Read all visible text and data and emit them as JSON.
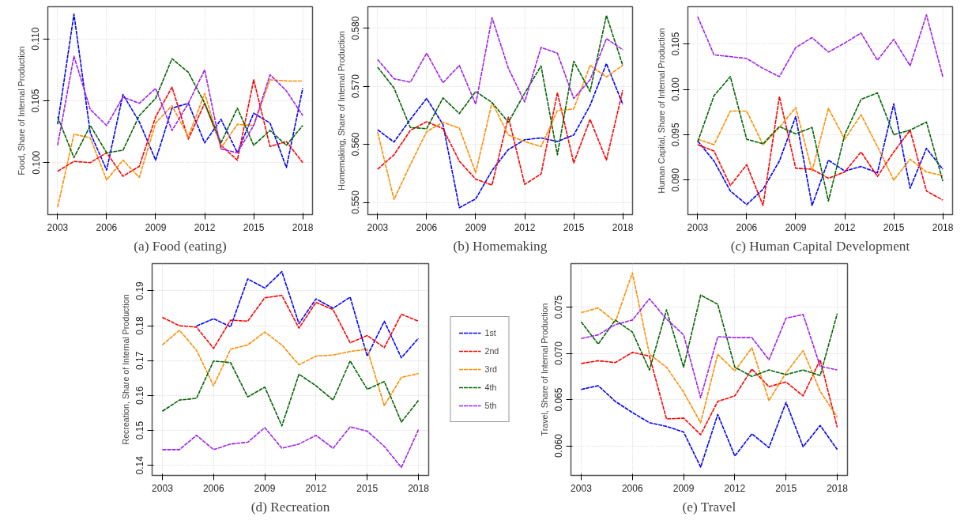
{
  "chart_data": [
    {
      "type": "line",
      "title": "(a) Food (eating)",
      "ylabel": "Food, Share of Internal Production",
      "x": [
        2003,
        2004,
        2005,
        2006,
        2007,
        2008,
        2009,
        2010,
        2011,
        2012,
        2013,
        2014,
        2015,
        2016,
        2017,
        2018
      ],
      "xlim": [
        2002.4,
        2018.6
      ],
      "xticks": [
        2003,
        2006,
        2009,
        2012,
        2015,
        2018
      ],
      "ylim": [
        0.0958,
        0.1126
      ],
      "yticks": [
        {
          "value": 0.1,
          "label": "0.100"
        },
        {
          "value": 0.105,
          "label": "0.105"
        },
        {
          "value": 0.11,
          "label": "0.110"
        }
      ],
      "grid": true,
      "line_style": "dashed",
      "series": [
        {
          "color": "#0000ff",
          "values": [
            0.1031,
            0.112,
            0.1024,
            0.0994,
            0.1055,
            0.1033,
            0.1002,
            0.1044,
            0.1048,
            0.1016,
            0.1035,
            0.1008,
            0.104,
            0.1032,
            0.0996,
            0.106
          ]
        },
        {
          "color": "#ff0000",
          "values": [
            0.0993,
            0.1001,
            0.1,
            0.1008,
            0.0989,
            0.0997,
            0.1037,
            0.1061,
            0.1019,
            0.1048,
            0.1014,
            0.1002,
            0.1067,
            0.1013,
            0.1017,
            0.1
          ]
        },
        {
          "color": "#ff8c00",
          "values": [
            0.0964,
            0.1023,
            0.102,
            0.0986,
            0.1002,
            0.0988,
            0.1032,
            0.1046,
            0.1021,
            0.1056,
            0.1012,
            0.1031,
            0.103,
            0.1067,
            0.1066,
            0.1066
          ]
        },
        {
          "color": "#006400",
          "values": [
            0.1037,
            0.1004,
            0.103,
            0.1008,
            0.101,
            0.1038,
            0.1052,
            0.1084,
            0.1073,
            0.1048,
            0.1016,
            0.1044,
            0.1014,
            0.1026,
            0.1014,
            0.103
          ]
        },
        {
          "color": "#a020f0",
          "values": [
            0.1014,
            0.1086,
            0.1043,
            0.103,
            0.1053,
            0.1048,
            0.106,
            0.1026,
            0.1048,
            0.1075,
            0.1011,
            0.1008,
            0.103,
            0.1071,
            0.1058,
            0.1038
          ]
        }
      ]
    },
    {
      "type": "line",
      "title": "(b) Homemaking",
      "ylabel": "Homemaking, Share of Internal Production",
      "x": [
        2003,
        2004,
        2005,
        2006,
        2007,
        2008,
        2009,
        2010,
        2011,
        2012,
        2013,
        2014,
        2015,
        2016,
        2017,
        2018
      ],
      "xlim": [
        2002.4,
        2018.6
      ],
      "xticks": [
        2003,
        2006,
        2009,
        2012,
        2015,
        2018
      ],
      "ylim": [
        0.5479,
        0.5837
      ],
      "yticks": [
        {
          "value": 0.55,
          "label": "0.550"
        },
        {
          "value": 0.56,
          "label": "0.560"
        },
        {
          "value": 0.57,
          "label": "0.570"
        },
        {
          "value": 0.58,
          "label": "0.580"
        }
      ],
      "grid": true,
      "line_style": "dashed",
      "series": [
        {
          "color": "#0000ff",
          "values": [
            0.5625,
            0.5604,
            0.5643,
            0.5679,
            0.5634,
            0.5491,
            0.5506,
            0.5555,
            0.5591,
            0.5608,
            0.5611,
            0.5605,
            0.5616,
            0.5667,
            0.5739,
            0.5669
          ]
        },
        {
          "color": "#ff0000",
          "values": [
            0.5557,
            0.5582,
            0.5624,
            0.5639,
            0.5627,
            0.5571,
            0.554,
            0.553,
            0.5647,
            0.5531,
            0.5549,
            0.5689,
            0.5568,
            0.5643,
            0.5573,
            0.5693
          ]
        },
        {
          "color": "#ff8c00",
          "values": [
            0.5621,
            0.5505,
            0.5565,
            0.5622,
            0.5638,
            0.5628,
            0.5551,
            0.5672,
            0.5616,
            0.5605,
            0.5596,
            0.5658,
            0.5661,
            0.5736,
            0.5716,
            0.5736
          ]
        },
        {
          "color": "#006400",
          "values": [
            0.5733,
            0.5697,
            0.5629,
            0.5627,
            0.568,
            0.5653,
            0.5691,
            0.5672,
            0.5638,
            0.5688,
            0.5735,
            0.5582,
            0.5743,
            0.5691,
            0.5822,
            0.5736
          ]
        },
        {
          "color": "#a020f0",
          "values": [
            0.5746,
            0.5713,
            0.5707,
            0.5757,
            0.5706,
            0.5736,
            0.5669,
            0.5818,
            0.5731,
            0.5673,
            0.5767,
            0.5757,
            0.5679,
            0.5711,
            0.5782,
            0.5763
          ]
        }
      ]
    },
    {
      "type": "line",
      "title": "(c) Human Capital Development",
      "ylabel": "Human Capital, Share of Internal Production",
      "x": [
        2003,
        2004,
        2005,
        2006,
        2007,
        2008,
        2009,
        2010,
        2011,
        2012,
        2013,
        2014,
        2015,
        2016,
        2017,
        2018
      ],
      "xlim": [
        2002.4,
        2018.6
      ],
      "xticks": [
        2003,
        2006,
        2009,
        2012,
        2015,
        2018
      ],
      "ylim": [
        0.0862,
        0.1091
      ],
      "yticks": [
        {
          "value": 0.09,
          "label": "0.090"
        },
        {
          "value": 0.095,
          "label": "0.095"
        },
        {
          "value": 0.1,
          "label": "0.100"
        },
        {
          "value": 0.105,
          "label": "0.105"
        }
      ],
      "grid": true,
      "line_style": "dashed",
      "series": [
        {
          "color": "#0000ff",
          "values": [
            0.0943,
            0.0921,
            0.0888,
            0.0873,
            0.089,
            0.0921,
            0.097,
            0.0872,
            0.0922,
            0.091,
            0.0915,
            0.0908,
            0.0984,
            0.0891,
            0.0935,
            0.0912
          ]
        },
        {
          "color": "#ff0000",
          "values": [
            0.0939,
            0.0932,
            0.0894,
            0.0917,
            0.0872,
            0.0992,
            0.0913,
            0.0912,
            0.0902,
            0.0909,
            0.0931,
            0.0904,
            0.0931,
            0.0955,
            0.0888,
            0.0878
          ]
        },
        {
          "color": "#ff8c00",
          "values": [
            0.0945,
            0.0939,
            0.0976,
            0.0976,
            0.0939,
            0.0958,
            0.098,
            0.091,
            0.0979,
            0.0945,
            0.0972,
            0.0937,
            0.09,
            0.0923,
            0.0909,
            0.0905
          ]
        },
        {
          "color": "#006400",
          "values": [
            0.0942,
            0.0993,
            0.1014,
            0.0945,
            0.094,
            0.0959,
            0.0951,
            0.0958,
            0.0877,
            0.095,
            0.0989,
            0.0996,
            0.095,
            0.0955,
            0.0964,
            0.0899
          ]
        },
        {
          "color": "#a020f0",
          "values": [
            0.108,
            0.1038,
            0.1036,
            0.1034,
            0.1023,
            0.1014,
            0.1046,
            0.1057,
            0.1041,
            0.1051,
            0.1062,
            0.1032,
            0.1055,
            0.1026,
            0.1082,
            0.1014
          ]
        }
      ]
    },
    {
      "type": "line",
      "title": "(d) Recreation",
      "ylabel": "Recreation, Share of Internal Production",
      "x": [
        2003,
        2004,
        2005,
        2006,
        2007,
        2008,
        2009,
        2010,
        2011,
        2012,
        2013,
        2014,
        2015,
        2016,
        2017,
        2018
      ],
      "xlim": [
        2002.4,
        2018.6
      ],
      "xticks": [
        2003,
        2006,
        2009,
        2012,
        2015,
        2018
      ],
      "ylim": [
        0.1371,
        0.1978
      ],
      "yticks": [
        0.14,
        0.15,
        0.16,
        0.17,
        0.18,
        0.19
      ],
      "grid": true,
      "line_style": "dashed",
      "legend": "right",
      "series": [
        {
          "name": "1st",
          "color": "#0000ff",
          "values": [
            null,
            null,
            0.1799,
            0.182,
            0.1797,
            0.1934,
            0.1908,
            0.1955,
            0.1806,
            0.1877,
            0.185,
            0.1882,
            0.1713,
            0.1813,
            0.1708,
            0.1764
          ]
        },
        {
          "name": "2nd",
          "color": "#ff0000",
          "values": [
            0.1824,
            0.18,
            0.1796,
            0.1735,
            0.1816,
            0.1813,
            0.188,
            0.1887,
            0.1793,
            0.1867,
            0.1846,
            0.1751,
            0.1772,
            0.1737,
            0.1833,
            0.1813
          ]
        },
        {
          "name": "3rd",
          "color": "#ff8c00",
          "values": [
            0.1745,
            0.1787,
            0.173,
            0.1628,
            0.1733,
            0.1745,
            0.1782,
            0.1745,
            0.1688,
            0.1713,
            0.1716,
            0.1726,
            0.1733,
            0.1571,
            0.1652,
            0.1663
          ]
        },
        {
          "name": "4th",
          "color": "#006400",
          "values": [
            0.1555,
            0.1587,
            0.1592,
            0.1699,
            0.1694,
            0.1596,
            0.1624,
            0.1513,
            0.1661,
            0.1628,
            0.1587,
            0.1699,
            0.1618,
            0.164,
            0.1524,
            0.1586
          ]
        },
        {
          "name": "5th",
          "color": "#a020f0",
          "values": [
            0.1445,
            0.1445,
            0.1486,
            0.1445,
            0.1461,
            0.1466,
            0.1508,
            0.1449,
            0.1461,
            0.1486,
            0.1449,
            0.151,
            0.1498,
            0.1454,
            0.1394,
            0.1502
          ]
        }
      ]
    },
    {
      "type": "line",
      "title": "(e) Travel",
      "ylabel": "Travel, Share of Internal Production",
      "x": [
        2003,
        2004,
        2005,
        2006,
        2007,
        2008,
        2009,
        2010,
        2011,
        2012,
        2013,
        2014,
        2015,
        2016,
        2017,
        2018
      ],
      "xlim": [
        2002.4,
        2018.6
      ],
      "xticks": [
        2003,
        2006,
        2009,
        2012,
        2015,
        2018
      ],
      "ylim": [
        0.0568,
        0.0797
      ],
      "yticks": [
        {
          "value": 0.06,
          "label": "0.060"
        },
        {
          "value": 0.065,
          "label": "0.065"
        },
        {
          "value": 0.07,
          "label": "0.070"
        },
        {
          "value": 0.075,
          "label": "0.075"
        }
      ],
      "grid": true,
      "line_style": "dashed",
      "series": [
        {
          "color": "#0000ff",
          "values": [
            0.0661,
            0.0665,
            0.0648,
            0.0636,
            0.0625,
            0.0621,
            0.0615,
            0.0577,
            0.0634,
            0.0589,
            0.0613,
            0.0598,
            0.0647,
            0.0599,
            0.0622,
            0.0596
          ]
        },
        {
          "color": "#ff0000",
          "values": [
            0.0689,
            0.0692,
            0.069,
            0.0701,
            0.0697,
            0.0629,
            0.063,
            0.0612,
            0.0648,
            0.0654,
            0.0683,
            0.0664,
            0.0669,
            0.0654,
            0.0693,
            0.062
          ]
        },
        {
          "color": "#ff8c00",
          "values": [
            0.0744,
            0.0749,
            0.0734,
            0.0787,
            0.0699,
            0.0685,
            0.0658,
            0.0625,
            0.0699,
            0.0681,
            0.0706,
            0.0649,
            0.0679,
            0.0703,
            0.0659,
            0.0631
          ]
        },
        {
          "color": "#006400",
          "values": [
            0.0734,
            0.071,
            0.0736,
            0.0723,
            0.0682,
            0.0747,
            0.0685,
            0.0763,
            0.0753,
            0.0685,
            0.0675,
            0.0682,
            0.0677,
            0.0682,
            0.0676,
            0.0743
          ]
        },
        {
          "color": "#a020f0",
          "values": [
            0.0716,
            0.072,
            0.0731,
            0.0736,
            0.0759,
            0.0737,
            0.072,
            0.0652,
            0.0718,
            0.0717,
            0.0717,
            0.0693,
            0.0738,
            0.0742,
            0.0686,
            0.0682
          ]
        }
      ]
    }
  ]
}
